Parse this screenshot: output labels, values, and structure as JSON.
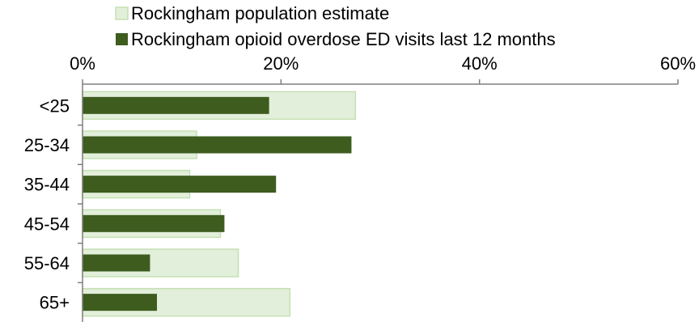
{
  "chart_data": {
    "type": "bar",
    "orientation": "horizontal",
    "categories": [
      "<25",
      "25-34",
      "35-44",
      "45-54",
      "55-64",
      "65+"
    ],
    "series": [
      {
        "name": "Rockingham population estimate",
        "values": [
          27.5,
          11.5,
          10.8,
          13.9,
          15.7,
          20.9
        ],
        "color": "#e2efda",
        "border": "#c5e0b4"
      },
      {
        "name": "Rockingham opioid overdose ED visits last 12 months",
        "values": [
          18.8,
          27.1,
          19.5,
          14.3,
          6.8,
          7.5
        ],
        "color": "#3d5c1e"
      }
    ],
    "x_ticks": [
      "0%",
      "20%",
      "40%",
      "60%"
    ],
    "xlim": [
      0,
      60
    ],
    "legend_position": "top",
    "grid": false
  }
}
